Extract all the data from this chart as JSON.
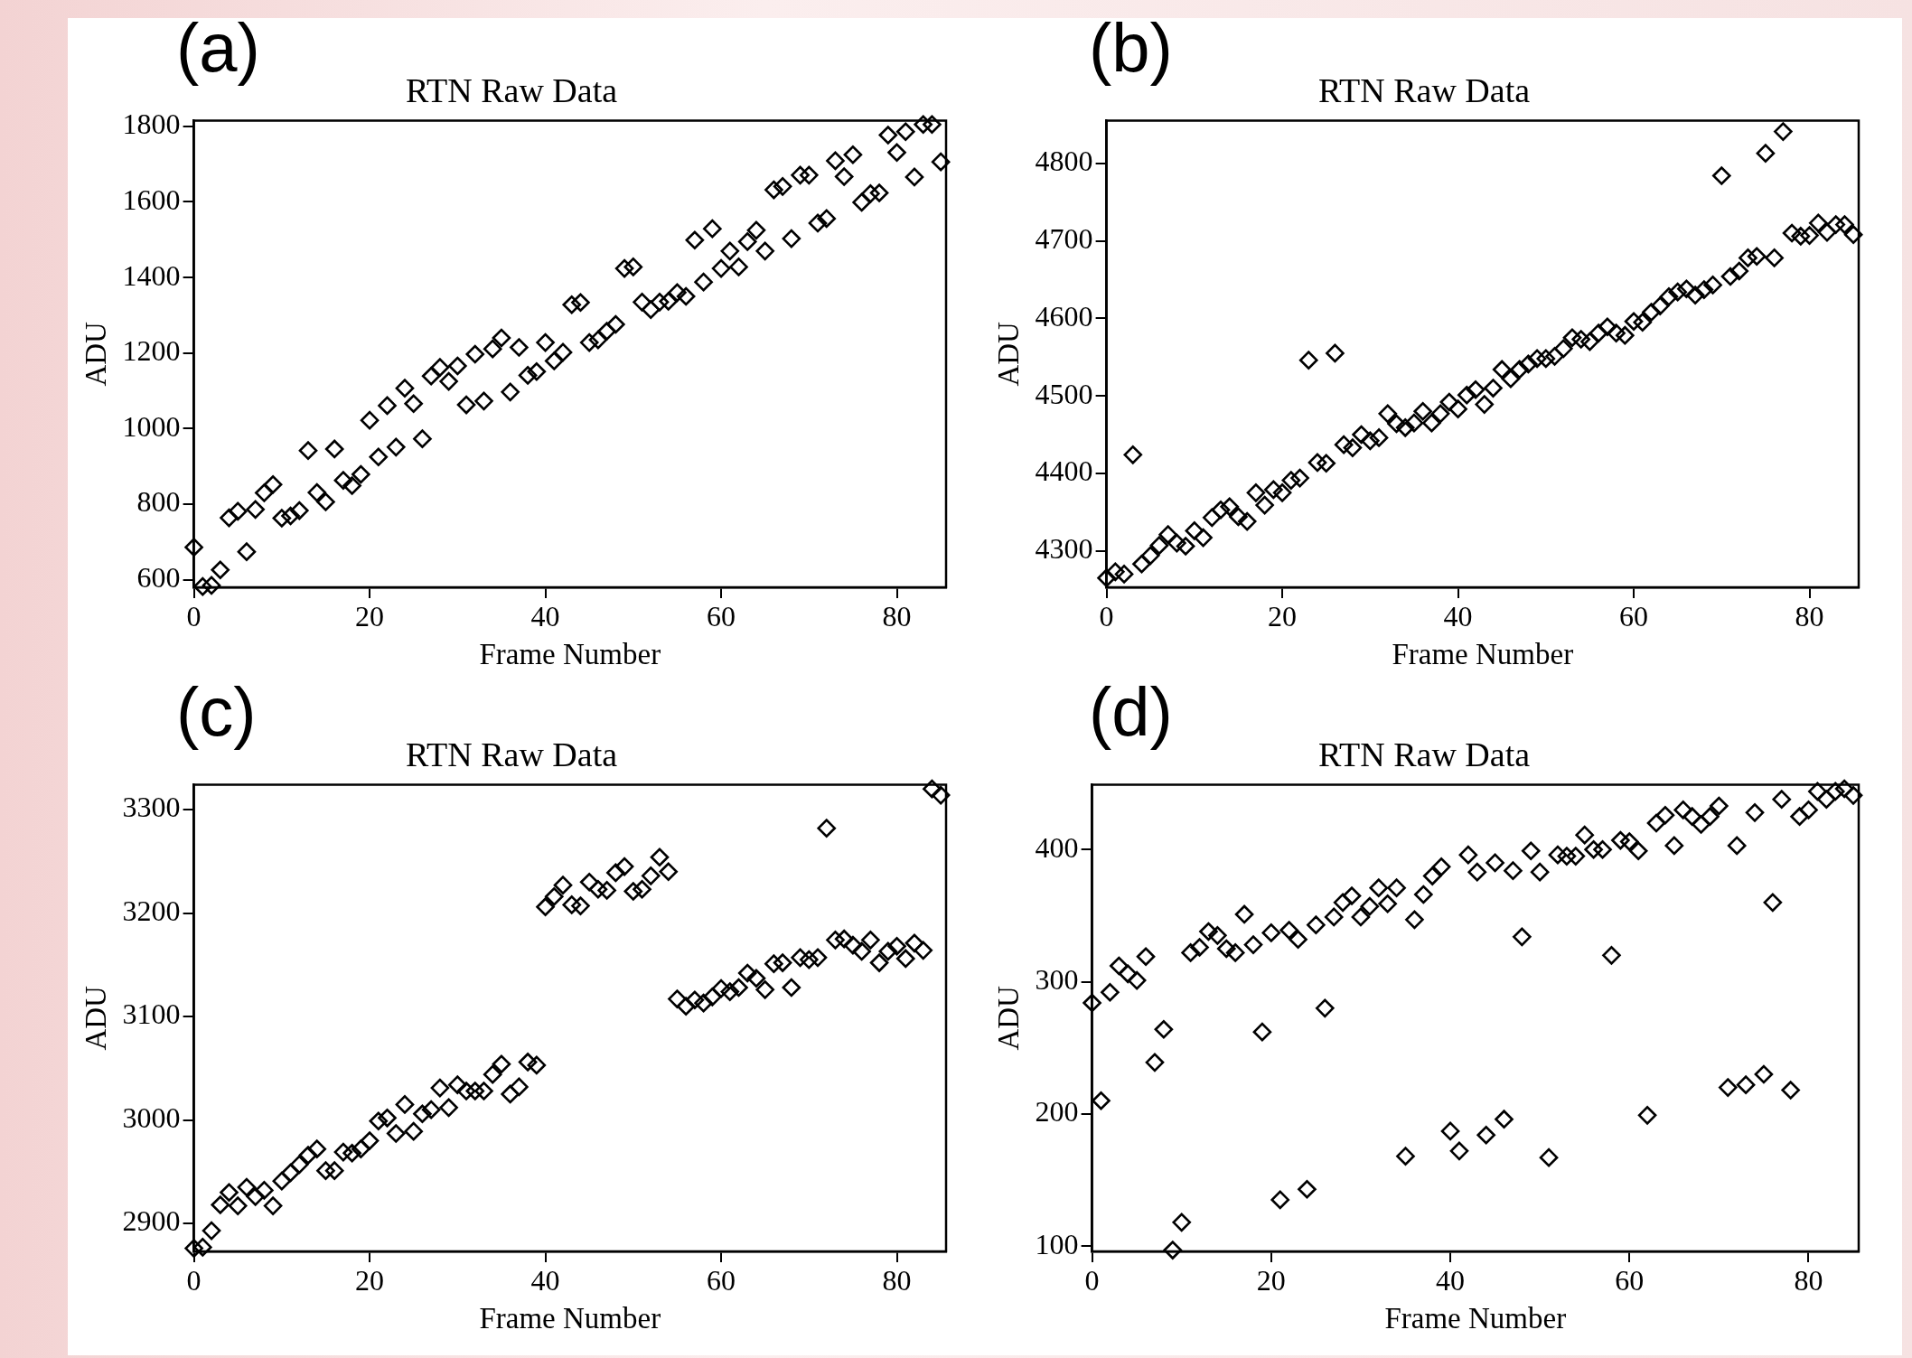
{
  "chart_data": [
    {
      "type": "scatter",
      "title": "RTN Raw Data",
      "xlabel": "Frame Number",
      "ylabel": "ADU",
      "annotations": [
        "(a)"
      ],
      "marker": "diamond",
      "color": "#000000",
      "x": [
        0,
        1,
        2,
        3,
        4,
        5,
        6,
        7,
        8,
        9,
        10,
        11,
        12,
        13,
        14,
        15,
        16,
        17,
        18,
        19,
        20,
        21,
        22,
        23,
        24,
        25,
        26,
        27,
        28,
        29,
        30,
        31,
        32,
        33,
        34,
        35,
        36,
        37,
        38,
        39,
        40,
        41,
        42,
        43,
        44,
        45,
        46,
        47,
        48,
        49,
        50,
        51,
        52,
        53,
        54,
        55,
        56,
        57,
        58,
        59,
        60,
        61,
        62,
        63,
        64,
        65,
        66,
        67,
        68,
        69,
        70,
        71,
        72,
        73,
        74,
        75,
        76,
        77,
        78,
        79,
        80,
        81,
        82,
        83,
        84,
        85
      ],
      "values": [
        686,
        582,
        585,
        626,
        764,
        781,
        674,
        786,
        830,
        852,
        763,
        769,
        783,
        942,
        831,
        806,
        946,
        863,
        849,
        879,
        1022,
        925,
        1061,
        951,
        1107,
        1066,
        973,
        1139,
        1162,
        1125,
        1166,
        1063,
        1197,
        1073,
        1211,
        1240,
        1097,
        1215,
        1141,
        1151,
        1228,
        1179,
        1202,
        1328,
        1334,
        1228,
        1235,
        1258,
        1276,
        1424,
        1428,
        1335,
        1315,
        1335,
        1337,
        1360,
        1350,
        1499,
        1388,
        1529,
        1424,
        1470,
        1428,
        1495,
        1525,
        1470,
        1632,
        1641,
        1503,
        1671,
        1671,
        1544,
        1556,
        1709,
        1667,
        1725,
        1599,
        1622,
        1624,
        1777,
        1731,
        1786,
        1666,
        1805,
        1805,
        1706
      ],
      "xlim": [
        0,
        85.6
      ],
      "xticks": [
        0,
        20,
        40,
        60,
        80
      ],
      "ylim": [
        580,
        1815
      ],
      "yticks": [
        600,
        800,
        1000,
        1200,
        1400,
        1600,
        1800
      ]
    },
    {
      "type": "scatter",
      "title": "RTN Raw Data",
      "xlabel": "Frame Number",
      "ylabel": "ADU",
      "annotations": [
        "(b)"
      ],
      "marker": "diamond",
      "color": "#000000",
      "x": [
        0,
        1,
        2,
        3,
        4,
        5,
        6,
        7,
        8,
        9,
        10,
        11,
        12,
        13,
        14,
        15,
        16,
        17,
        18,
        19,
        20,
        21,
        22,
        23,
        24,
        25,
        26,
        27,
        28,
        29,
        30,
        31,
        32,
        33,
        34,
        35,
        36,
        37,
        38,
        39,
        40,
        41,
        42,
        43,
        44,
        45,
        46,
        47,
        48,
        49,
        50,
        51,
        52,
        53,
        54,
        55,
        56,
        57,
        58,
        59,
        60,
        61,
        62,
        63,
        64,
        65,
        66,
        67,
        68,
        69,
        70,
        71,
        72,
        73,
        74,
        75,
        76,
        77,
        78,
        79,
        80,
        81,
        82,
        83,
        84,
        85
      ],
      "values": [
        4265,
        4273,
        4270,
        4424,
        4283,
        4294,
        4307,
        4321,
        4310,
        4306,
        4326,
        4317,
        4343,
        4353,
        4357,
        4344,
        4338,
        4375,
        4359,
        4379,
        4375,
        4391,
        4394,
        4546,
        4414,
        4413,
        4555,
        4437,
        4433,
        4450,
        4442,
        4446,
        4477,
        4464,
        4459,
        4465,
        4480,
        4465,
        4477,
        4492,
        4483,
        4501,
        4508,
        4489,
        4510,
        4534,
        4522,
        4534,
        4541,
        4548,
        4548,
        4551,
        4561,
        4575,
        4573,
        4570,
        4581,
        4589,
        4581,
        4578,
        4596,
        4595,
        4608,
        4616,
        4628,
        4634,
        4638,
        4630,
        4637,
        4643,
        4784,
        4654,
        4661,
        4678,
        4680,
        4813,
        4678,
        4841,
        4710,
        4706,
        4707,
        4723,
        4711,
        4721,
        4721,
        4708
      ],
      "xlim": [
        0,
        85.6
      ],
      "xticks": [
        0,
        20,
        40,
        60,
        80
      ],
      "ylim": [
        4253,
        4855
      ],
      "yticks": [
        4300,
        4400,
        4500,
        4600,
        4700,
        4800
      ]
    },
    {
      "type": "scatter",
      "title": "RTN Raw Data",
      "xlabel": "Frame Number",
      "ylabel": "ADU",
      "annotations": [
        "(c)"
      ],
      "marker": "diamond",
      "color": "#000000",
      "x": [
        0,
        1,
        2,
        3,
        4,
        5,
        6,
        7,
        8,
        9,
        10,
        11,
        12,
        13,
        14,
        15,
        16,
        17,
        18,
        19,
        20,
        21,
        22,
        23,
        24,
        25,
        26,
        27,
        28,
        29,
        30,
        31,
        32,
        33,
        34,
        35,
        36,
        37,
        38,
        39,
        40,
        41,
        42,
        43,
        44,
        45,
        46,
        47,
        48,
        49,
        50,
        51,
        52,
        53,
        54,
        55,
        56,
        57,
        58,
        59,
        60,
        61,
        62,
        63,
        64,
        65,
        66,
        67,
        68,
        69,
        70,
        71,
        72,
        73,
        74,
        75,
        76,
        77,
        78,
        79,
        80,
        81,
        82,
        83,
        84,
        85
      ],
      "values": [
        2876,
        2877,
        2893,
        2918,
        2930,
        2917,
        2935,
        2926,
        2932,
        2917,
        2941,
        2949,
        2957,
        2966,
        2972,
        2951,
        2951,
        2969,
        2968,
        2972,
        2980,
        2999,
        3002,
        2987,
        3015,
        2989,
        3006,
        3010,
        3031,
        3012,
        3034,
        3028,
        3028,
        3028,
        3044,
        3054,
        3025,
        3032,
        3056,
        3053,
        3206,
        3216,
        3227,
        3208,
        3207,
        3230,
        3223,
        3222,
        3239,
        3245,
        3221,
        3223,
        3236,
        3254,
        3240,
        3117,
        3110,
        3116,
        3113,
        3119,
        3127,
        3124,
        3128,
        3142,
        3137,
        3126,
        3151,
        3152,
        3128,
        3157,
        3155,
        3157,
        3282,
        3174,
        3175,
        3169,
        3163,
        3174,
        3152,
        3163,
        3168,
        3156,
        3171,
        3164,
        3320,
        3314
      ],
      "xlim": [
        0,
        85.6
      ],
      "xticks": [
        0,
        20,
        40,
        60,
        80
      ],
      "ylim": [
        2873,
        3324
      ],
      "yticks": [
        2900,
        3000,
        3100,
        3200,
        3300
      ]
    },
    {
      "type": "scatter",
      "title": "RTN Raw Data",
      "xlabel": "Frame Number",
      "ylabel": "ADU",
      "annotations": [
        "(d)"
      ],
      "marker": "diamond",
      "color": "#000000",
      "x": [
        0,
        1,
        2,
        3,
        4,
        5,
        6,
        7,
        8,
        9,
        10,
        11,
        12,
        13,
        14,
        15,
        16,
        17,
        18,
        19,
        20,
        21,
        22,
        23,
        24,
        25,
        26,
        27,
        28,
        29,
        30,
        31,
        32,
        33,
        34,
        35,
        36,
        37,
        38,
        39,
        40,
        41,
        42,
        43,
        44,
        45,
        46,
        47,
        48,
        49,
        50,
        51,
        52,
        53,
        54,
        55,
        56,
        57,
        58,
        59,
        60,
        61,
        62,
        63,
        64,
        65,
        66,
        67,
        68,
        69,
        70,
        71,
        72,
        73,
        74,
        75,
        76,
        77,
        78,
        79,
        80,
        81,
        82,
        83,
        84,
        85
      ],
      "values": [
        284,
        210,
        292,
        312,
        306,
        301,
        319,
        239,
        264,
        97,
        118,
        322,
        326,
        338,
        335,
        325,
        322,
        351,
        328,
        262,
        337,
        135,
        339,
        332,
        143,
        343,
        280,
        349,
        360,
        365,
        349,
        357,
        371,
        359,
        371,
        168,
        347,
        366,
        380,
        387,
        187,
        172,
        396,
        383,
        184,
        390,
        196,
        384,
        334,
        399,
        383,
        167,
        396,
        395,
        395,
        411,
        400,
        400,
        320,
        407,
        406,
        399,
        199,
        420,
        426,
        403,
        430,
        425,
        419,
        425,
        433,
        220,
        403,
        222,
        428,
        230,
        360,
        438,
        218,
        425,
        430,
        444,
        438,
        444,
        446,
        441
      ],
      "xlim": [
        0,
        85.6
      ],
      "xticks": [
        0,
        20,
        40,
        60,
        80
      ],
      "ylim": [
        96,
        449
      ],
      "yticks": [
        100,
        200,
        300,
        400
      ]
    }
  ]
}
